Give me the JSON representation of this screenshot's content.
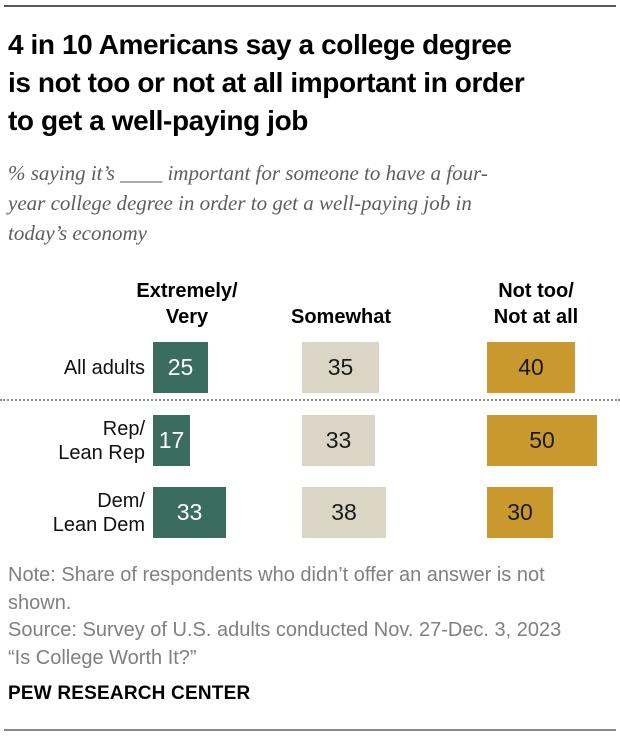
{
  "header": {
    "title_lines": [
      "4 in 10 Americans say a college degree",
      "is not too or not at all important in order",
      "to get a well-paying job"
    ],
    "subtitle_lines": [
      "% saying it’s ____ important for someone to have a four-",
      "year college degree in order to get a well-paying job in",
      "today’s economy"
    ]
  },
  "chart_data": {
    "type": "bar",
    "orientation": "horizontal",
    "title": "4 in 10 Americans say a college degree is not too or not at all important in order to get a well-paying job",
    "subtitle": "% saying it’s ____ important for someone to have a four-year college degree in order to get a well-paying job in today’s economy",
    "categories": [
      "All adults",
      "Rep/Lean Rep",
      "Dem/Lean Dem"
    ],
    "series": [
      {
        "name": "Extremely/Very",
        "color": "#3B6D5F",
        "text_color": "#ffffff",
        "values": [
          25,
          17,
          33
        ]
      },
      {
        "name": "Somewhat",
        "color": "#DAD5C5",
        "text_color": "#1a1a1a",
        "values": [
          35,
          33,
          38
        ]
      },
      {
        "name": "Not too/Not at all",
        "color": "#C9982F",
        "text_color": "#1a1a1a",
        "values": [
          40,
          50,
          30
        ]
      }
    ],
    "value_unit": "%",
    "xlim": [
      0,
      100
    ],
    "grid": false,
    "legend_position": "column-headers-above-bars"
  },
  "labels": {
    "col_headers": [
      {
        "lines": [
          "Extremely/",
          "Very"
        ]
      },
      {
        "lines": [
          "Somewhat"
        ]
      },
      {
        "lines": [
          "Not too/",
          "Not at all"
        ]
      }
    ],
    "row_labels": [
      {
        "lines": [
          "All adults"
        ]
      },
      {
        "lines": [
          "Rep/",
          "Lean Rep"
        ]
      },
      {
        "lines": [
          "Dem/",
          "Lean Dem"
        ]
      }
    ]
  },
  "footer": {
    "note_lines": [
      "Note: Share of respondents who didn’t offer an answer is not",
      "shown."
    ],
    "source": "Source: Survey of U.S. adults conducted Nov. 27-Dec. 3, 2023",
    "source_title": "“Is College Worth It?”",
    "brand": "PEW RESEARCH CENTER"
  }
}
